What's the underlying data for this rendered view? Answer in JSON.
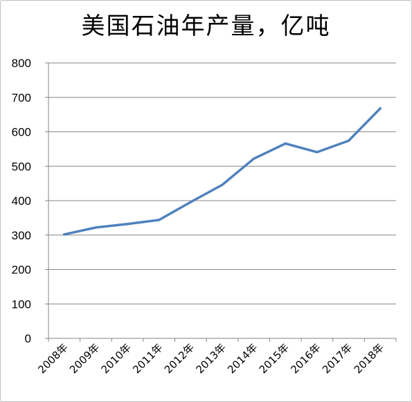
{
  "chart_data": {
    "type": "line",
    "title": "美国石油年产量，亿吨",
    "categories": [
      "2008年",
      "2009年",
      "2010年",
      "2011年",
      "2012年",
      "2013年",
      "2014年",
      "2015年",
      "2016年",
      "2017年",
      "2018年"
    ],
    "series": [
      {
        "values": [
          302,
          322,
          332,
          344,
          396,
          446,
          522,
          566,
          541,
          574,
          668
        ],
        "color": "#4f81bd"
      }
    ],
    "yticks": [
      "0",
      "100",
      "200",
      "300",
      "400",
      "500",
      "600",
      "700",
      "800"
    ],
    "ylim": [
      0,
      800
    ],
    "grid": true,
    "legend": "none",
    "xlabel": "",
    "ylabel": ""
  }
}
